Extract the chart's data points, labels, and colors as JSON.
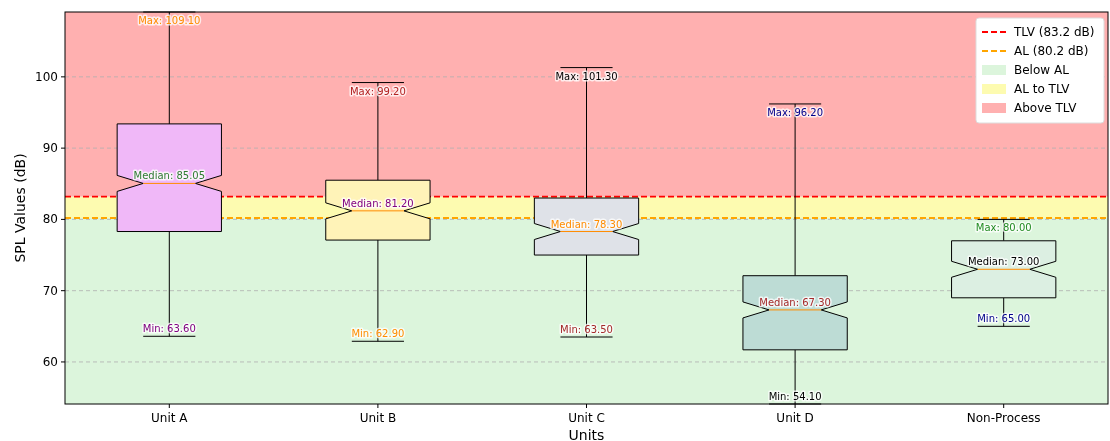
{
  "chart_data": {
    "type": "box",
    "xlabel": "Units",
    "ylabel": "SPL Values (dB)",
    "categories": [
      "Unit A",
      "Unit B",
      "Unit C",
      "Unit D",
      "Non-Process"
    ],
    "colors": [
      "#f0b8f8",
      "#fff3b8",
      "#dfe2e8",
      "#bddcd5",
      "#dcefe2"
    ],
    "boxes": [
      {
        "low": 63.6,
        "q1": 78.3,
        "median": 85.05,
        "q3": 93.4,
        "high": 109.1
      },
      {
        "low": 62.9,
        "q1": 77.1,
        "median": 81.2,
        "q3": 85.5,
        "high": 99.2
      },
      {
        "low": 63.5,
        "q1": 75.0,
        "median": 78.3,
        "q3": 83.0,
        "high": 101.3
      },
      {
        "low": 54.1,
        "q1": 61.7,
        "median": 67.3,
        "q3": 72.1,
        "high": 96.2
      },
      {
        "low": 65.0,
        "q1": 69.0,
        "median": 73.0,
        "q3": 77.0,
        "high": 80.0
      }
    ],
    "ylim": [
      54.1,
      109.1
    ],
    "yticks": [
      60,
      70,
      80,
      90,
      100
    ],
    "grid": "y",
    "legend": "top right",
    "ref_lines": [
      {
        "axis": "y",
        "value": 83.2,
        "label": "TLV (83.2 dB)",
        "color": "#ff0000",
        "line_style": "dashed"
      },
      {
        "axis": "y",
        "value": 80.2,
        "label": "AL (80.2 dB)",
        "color": "#ffa500",
        "line_style": "dashed"
      }
    ],
    "bands": [
      {
        "axis": "y",
        "from": 54.1,
        "to": 80.2,
        "label": "Below AL",
        "color": "#dcf5dc"
      },
      {
        "axis": "y",
        "from": 80.2,
        "to": 83.2,
        "label": "AL to TLV",
        "color": "#fdfbb0"
      },
      {
        "axis": "y",
        "from": 83.2,
        "to": 109.1,
        "label": "Above TLV",
        "color": "#ffb0b0"
      }
    ],
    "annotations": [
      {
        "text": "Max: 109.10",
        "x": "Unit A",
        "y": 109.1
      },
      {
        "text": "Median: 85.05",
        "x": "Unit A",
        "y": 85.05
      },
      {
        "text": "Min: 63.60",
        "x": "Unit A",
        "y": 63.6
      },
      {
        "text": "Max: 99.20",
        "x": "Unit B",
        "y": 99.2
      },
      {
        "text": "Median: 81.20",
        "x": "Unit B",
        "y": 81.2
      },
      {
        "text": "Min: 62.90",
        "x": "Unit B",
        "y": 62.9
      },
      {
        "text": "Max: 101.30",
        "x": "Unit C",
        "y": 101.3
      },
      {
        "text": "Median: 78.30",
        "x": "Unit C",
        "y": 78.3
      },
      {
        "text": "Min: 63.50",
        "x": "Unit C",
        "y": 63.5
      },
      {
        "text": "Max: 96.20",
        "x": "Unit D",
        "y": 96.2
      },
      {
        "text": "Median: 67.30",
        "x": "Unit D",
        "y": 67.3
      },
      {
        "text": "Min: 54.10",
        "x": "Unit D",
        "y": 54.1
      },
      {
        "text": "Max: 80.00",
        "x": "Non-Process",
        "y": 80.0
      },
      {
        "text": "Median: 73.00",
        "x": "Non-Process",
        "y": 73.0
      },
      {
        "text": "Min: 65.00",
        "x": "Non-Process",
        "y": 65.0
      }
    ]
  }
}
